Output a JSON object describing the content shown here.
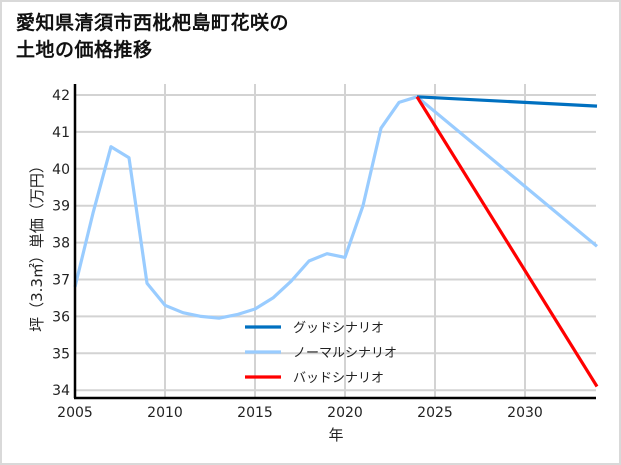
{
  "title_line1": "愛知県清須市西枇杷島町花咲の",
  "title_line2": "土地の価格推移",
  "chart_data": {
    "type": "line",
    "title": "愛知県清須市西枇杷島町花咲の土地の価格推移",
    "xlabel": "年",
    "ylabel": "坪（3.3㎡）単価（万円）",
    "xlim": [
      2005,
      2034
    ],
    "ylim": [
      33.8,
      42.3
    ],
    "xticks": [
      2005,
      2010,
      2015,
      2020,
      2025,
      2030
    ],
    "yticks": [
      34,
      35,
      36,
      37,
      38,
      39,
      40,
      41,
      42
    ],
    "grid": true,
    "legend_position": "lower center",
    "series": [
      {
        "name": "ノーマルシナリオ",
        "color": "#99ccff",
        "x": [
          2005,
          2006,
          2007,
          2008,
          2009,
          2010,
          2011,
          2012,
          2013,
          2014,
          2015,
          2016,
          2017,
          2018,
          2019,
          2020,
          2021,
          2022,
          2023,
          2024,
          2034
        ],
        "values": [
          36.8,
          38.8,
          40.6,
          40.3,
          36.9,
          36.3,
          36.1,
          36.0,
          35.95,
          36.05,
          36.2,
          36.5,
          36.95,
          37.5,
          37.7,
          37.6,
          39.0,
          41.1,
          41.8,
          41.95,
          37.9
        ]
      },
      {
        "name": "グッドシナリオ",
        "color": "#0070c0",
        "x": [
          2024,
          2034
        ],
        "values": [
          41.95,
          41.7
        ]
      },
      {
        "name": "バッドシナリオ",
        "color": "#ff0000",
        "x": [
          2024,
          2034
        ],
        "values": [
          41.95,
          34.1
        ]
      }
    ],
    "legend": [
      "グッドシナリオ",
      "ノーマルシナリオ",
      "バッドシナリオ"
    ]
  }
}
